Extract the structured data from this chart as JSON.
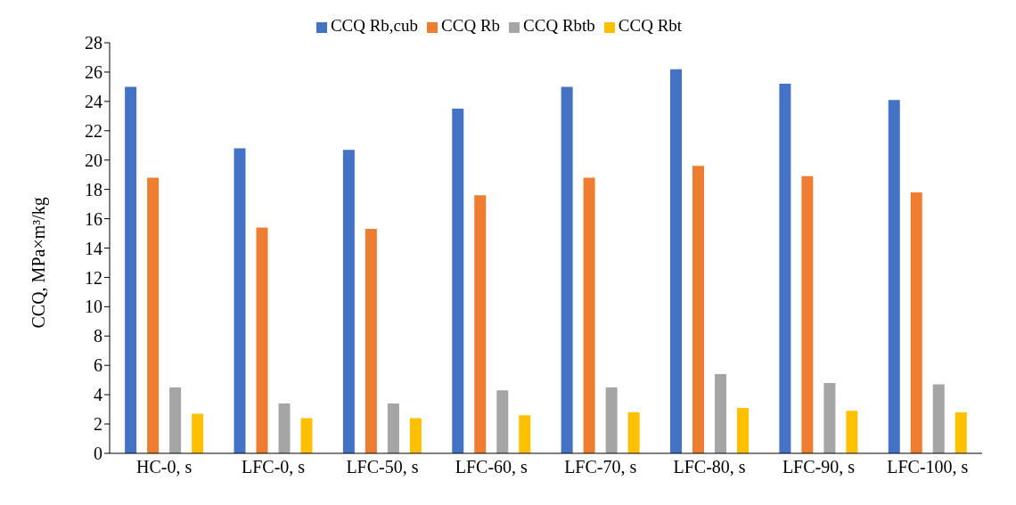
{
  "chart_data": {
    "type": "bar",
    "ylabel": "CCQ, MPa×m³/kg",
    "categories": [
      "HC-0, s",
      "LFC-0, s",
      "LFC-50, s",
      "LFC-60, s",
      "LFC-70, s",
      "LFC-80, s",
      "LFC-90, s",
      "LFC-100, s"
    ],
    "series": [
      {
        "name": "CCQ Rb,cub",
        "color": "#4472c4",
        "values": [
          25.0,
          20.8,
          20.7,
          23.5,
          25.0,
          26.2,
          25.2,
          24.1
        ]
      },
      {
        "name": "CCQ Rb",
        "color": "#ed7d31",
        "values": [
          18.8,
          15.4,
          15.3,
          17.6,
          18.8,
          19.6,
          18.9,
          17.8
        ]
      },
      {
        "name": "CCQ Rbtb",
        "color": "#a5a5a5",
        "values": [
          4.5,
          3.4,
          3.4,
          4.3,
          4.5,
          5.4,
          4.8,
          4.7
        ]
      },
      {
        "name": "CCQ Rbt",
        "color": "#ffc000",
        "values": [
          2.7,
          2.4,
          2.4,
          2.6,
          2.8,
          3.1,
          2.9,
          2.8
        ]
      }
    ],
    "ylim": [
      0,
      28
    ],
    "yticks": [
      0,
      2,
      4,
      6,
      8,
      10,
      12,
      14,
      16,
      18,
      20,
      22,
      24,
      26,
      28
    ],
    "grid": false,
    "legend": "top"
  }
}
